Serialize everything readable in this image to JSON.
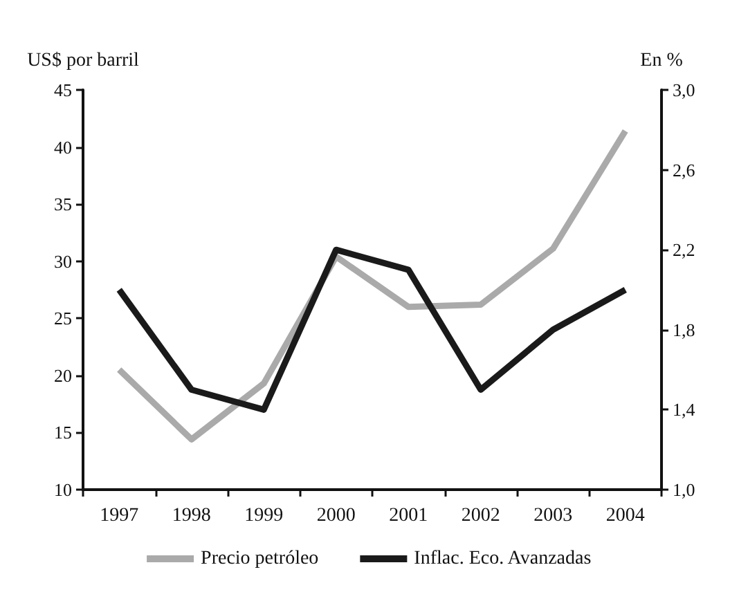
{
  "chart_data": {
    "type": "line",
    "ylabel": "US$ por barril",
    "y2label": "En %",
    "categories": [
      "1997",
      "1998",
      "1999",
      "2000",
      "2001",
      "2002",
      "2003",
      "2004"
    ],
    "series": [
      {
        "name": "Precio petróleo",
        "color": "#aaaaaa",
        "values": [
          20.5,
          14.4,
          19.3,
          30.4,
          26.0,
          26.2,
          31.1,
          41.4
        ]
      },
      {
        "name": "Inflac. Eco. Avanzadas",
        "color": "#1a1a1a",
        "axis": "y2",
        "values": [
          2.0,
          1.5,
          1.4,
          2.2,
          2.1,
          1.5,
          1.8,
          2.0
        ]
      }
    ],
    "ylim": [
      10,
      45
    ],
    "yticks": [
      10,
      15,
      20,
      25,
      30,
      35,
      40,
      45
    ],
    "y2lim": [
      1,
      3
    ],
    "y2ticks": [
      {
        "value": 1,
        "label": "1,0"
      },
      {
        "value": 1.4,
        "label": "1,4"
      },
      {
        "value": 1.8,
        "label": "1,8"
      },
      {
        "value": 2.2,
        "label": "2,2"
      },
      {
        "value": 2.6,
        "label": "2,6"
      },
      {
        "value": 3,
        "label": "3,0"
      }
    ],
    "grid": false,
    "legend": "bottom",
    "marker": "none",
    "line_style": "solid"
  }
}
